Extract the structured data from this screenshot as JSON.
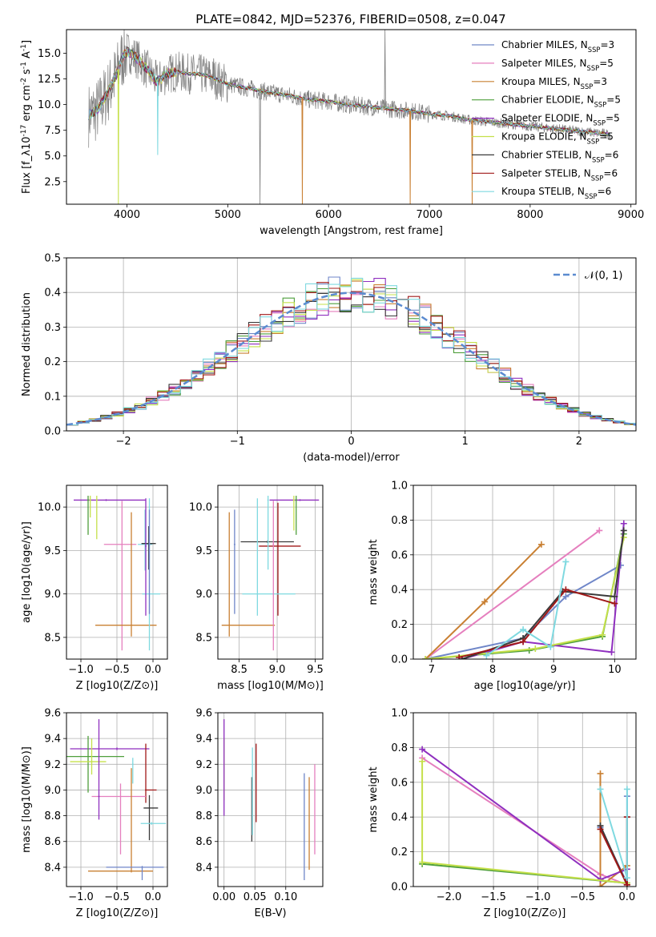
{
  "figure": {
    "title": "PLATE=0842, MJD=52376, FIBERID=0508, z=0.047"
  },
  "series_styles": [
    {
      "name": "Chabrier MILES",
      "n_ssp": 3,
      "color": "#6f86c8"
    },
    {
      "name": "Salpeter MILES",
      "n_ssp": 5,
      "color": "#e57fbe"
    },
    {
      "name": "Kroupa MILES",
      "n_ssp": 3,
      "color": "#c98033"
    },
    {
      "name": "Chabrier ELODIE",
      "n_ssp": 5,
      "color": "#4f9f3c"
    },
    {
      "name": "Salpeter ELODIE",
      "n_ssp": 5,
      "color": "#8f2fbf"
    },
    {
      "name": "Kroupa ELODIE",
      "n_ssp": 5,
      "color": "#c5e04a"
    },
    {
      "name": "Chabrier STELIB",
      "n_ssp": 6,
      "color": "#3a3a3a"
    },
    {
      "name": "Salpeter STELIB",
      "n_ssp": 6,
      "color": "#a01818"
    },
    {
      "name": "Kroupa STELIB",
      "n_ssp": 6,
      "color": "#7fd9e0"
    }
  ],
  "chart_data": [
    {
      "id": "spectrum",
      "type": "line",
      "xlabel": "wavelength [Angstrom, rest frame]",
      "ylabel": "Flux [f_λ10^-17 erg cm^-2 s^-1 A^-1]",
      "xlim": [
        3400,
        9050
      ],
      "ylim": [
        0.3,
        17.3
      ],
      "xticks": [
        4000,
        5000,
        6000,
        7000,
        8000,
        9000
      ],
      "yticks": [
        2.5,
        5.0,
        7.5,
        10.0,
        12.5,
        15.0
      ],
      "grid": false,
      "legend": "top-right",
      "data_color": "#808080",
      "continuum": {
        "x": [
          3620,
          3700,
          3800,
          3900,
          3950,
          4000,
          4100,
          4200,
          4300,
          4400,
          4500,
          4600,
          4700,
          4800,
          4900,
          5000,
          5200,
          5400,
          5600,
          5800,
          6000,
          6200,
          6400,
          6600,
          6800,
          7000,
          7200,
          7400,
          7600,
          7800,
          8000,
          8200,
          8400,
          8600,
          8800
        ],
        "y": [
          9.0,
          9.4,
          11.0,
          13.0,
          14.5,
          15.2,
          14.5,
          13.4,
          12.2,
          13.0,
          13.2,
          13.0,
          13.0,
          12.8,
          12.4,
          12.0,
          11.6,
          11.2,
          10.9,
          10.5,
          10.3,
          10.0,
          9.8,
          9.6,
          9.4,
          9.1,
          8.9,
          8.5,
          8.3,
          8.1,
          7.9,
          7.7,
          7.5,
          7.3,
          7.1
        ]
      },
      "dips": [
        {
          "x": 3915,
          "y": 0.3
        },
        {
          "x": 4305,
          "y": 5.1
        },
        {
          "x": 5740,
          "y": 0.3
        },
        {
          "x": 6810,
          "y": 0.3
        },
        {
          "x": 7425,
          "y": 0.3
        }
      ],
      "spikes": [
        {
          "x": 5320,
          "y": 0.3
        },
        {
          "x": 6560,
          "y": 17.3
        },
        {
          "x": 4860,
          "y": 14.5
        }
      ]
    },
    {
      "id": "residuals",
      "type": "line",
      "xlabel": "(data-model)/error",
      "ylabel": "Normed distribution",
      "xlim": [
        -2.5,
        2.5
      ],
      "ylim": [
        0.0,
        0.5
      ],
      "xticks": [
        -2,
        -1,
        0,
        1,
        2
      ],
      "yticks": [
        0.0,
        0.1,
        0.2,
        0.3,
        0.4,
        0.5
      ],
      "grid": true,
      "legend": "top-right",
      "gaussian": {
        "label": "𝒩(0, 1)",
        "mu": 0,
        "sigma": 1,
        "color": "#5b8bd0"
      },
      "bin_width": 0.1
    },
    {
      "id": "age-vs-Z",
      "type": "scatter",
      "xlabel": "Z [log10(Z/Z⊙)]",
      "ylabel": "age  [log10(age/yr)]",
      "xlim": [
        -1.2,
        0.2
      ],
      "ylim": [
        8.25,
        10.25
      ],
      "xticks": [
        -1.0,
        -0.5,
        0.0
      ],
      "yticks": [
        8.5,
        9.0,
        9.5,
        10.0
      ],
      "grid": true,
      "points": [
        {
          "s": 8,
          "x": -0.11,
          "y": 9.57,
          "ex": [
            0.1,
            0.1
          ],
          "ey": [
            0.3,
            0.4
          ]
        },
        {
          "s": 6,
          "x": -0.06,
          "y": 9.58,
          "ex": [
            0.1,
            0.1
          ],
          "ey": [
            0.3,
            0.2
          ]
        },
        {
          "s": 1,
          "x": -0.43,
          "y": 9.57,
          "ex": [
            0.25,
            0.2
          ],
          "ey": [
            1.22,
            0.5
          ]
        },
        {
          "s": 2,
          "x": -0.3,
          "y": 8.64,
          "ex": [
            0.5,
            0.35
          ],
          "ey": [
            0.13,
            1.3
          ]
        },
        {
          "s": 8,
          "x": -0.05,
          "y": 9.0,
          "ex": [
            0.1,
            0.15
          ],
          "ey": [
            0.65,
            1.1
          ]
        },
        {
          "s": 4,
          "x": -0.1,
          "y": 9.55,
          "ex": [
            0.01,
            0.01
          ],
          "ey": [
            0.8,
            0.55
          ]
        },
        {
          "s": 0,
          "x": -0.05,
          "y": 9.57,
          "ex": [
            0.01,
            0.01
          ],
          "ey": [
            0.8,
            0.4
          ]
        },
        {
          "s": 4,
          "x": -0.65,
          "y": 10.08,
          "ex": [
            0.45,
            0.55
          ],
          "ey": [
            0.01,
            0.01
          ]
        },
        {
          "s": 5,
          "x": -0.87,
          "y": 10.08,
          "ex": [
            0.01,
            0.01
          ],
          "ey": [
            0.2,
            0.05
          ]
        },
        {
          "s": 5,
          "x": -0.78,
          "y": 10.08,
          "ex": [
            0.01,
            0.01
          ],
          "ey": [
            0.45,
            0.05
          ]
        },
        {
          "s": 3,
          "x": -0.9,
          "y": 10.08,
          "ex": [
            0.01,
            0.01
          ],
          "ey": [
            0.4,
            0.05
          ]
        }
      ]
    },
    {
      "id": "age-vs-mass",
      "type": "scatter",
      "xlabel": "mass [log10(M/M⊙)]",
      "ylabel": "",
      "xlim": [
        8.22,
        9.6
      ],
      "ylim": [
        8.25,
        10.25
      ],
      "xticks": [
        8.5,
        9.0,
        9.5
      ],
      "yticks": [
        8.5,
        9.0,
        9.5,
        10.0
      ],
      "grid": true,
      "points": [
        {
          "s": 2,
          "x": 8.37,
          "y": 8.64,
          "ex": [
            0.1,
            0.6
          ],
          "ey": [
            0.13,
            1.3
          ]
        },
        {
          "s": 6,
          "x": 8.87,
          "y": 9.6,
          "ex": [
            0.35,
            0.35
          ],
          "ey": [
            0.01,
            0.01
          ]
        },
        {
          "s": 7,
          "x": 9.01,
          "y": 9.55,
          "ex": [
            0.25,
            0.3
          ],
          "ey": [
            0.8,
            0.5
          ]
        },
        {
          "s": 8,
          "x": 8.74,
          "y": 9.0,
          "ex": [
            0.2,
            0.5
          ],
          "ey": [
            0.25,
            1.1
          ]
        },
        {
          "s": 0,
          "x": 8.44,
          "y": 9.57,
          "ex": [
            0.01,
            0.01
          ],
          "ey": [
            0.8,
            0.4
          ]
        },
        {
          "s": 1,
          "x": 8.95,
          "y": 9.57,
          "ex": [
            0.01,
            0.01
          ],
          "ey": [
            1.22,
            0.5
          ]
        },
        {
          "s": 4,
          "x": 9.3,
          "y": 10.08,
          "ex": [
            0.4,
            0.25
          ],
          "ey": [
            0.01,
            0.01
          ]
        },
        {
          "s": 3,
          "x": 9.25,
          "y": 10.08,
          "ex": [
            0.01,
            0.01
          ],
          "ey": [
            0.4,
            0.05
          ]
        },
        {
          "s": 5,
          "x": 9.22,
          "y": 10.08,
          "ex": [
            0.01,
            0.01
          ],
          "ey": [
            0.35,
            0.05
          ]
        },
        {
          "s": 8,
          "x": 8.88,
          "y": 10.08,
          "ex": [
            0.01,
            0.01
          ],
          "ey": [
            0.8,
            0.05
          ]
        }
      ]
    },
    {
      "id": "mass-weight-vs-age",
      "type": "line",
      "xlabel": "age  [log10(age/yr)]",
      "ylabel": "mass weight",
      "xlim": [
        6.7,
        10.35
      ],
      "ylim": [
        0.0,
        1.0
      ],
      "xticks": [
        7,
        8,
        9,
        10
      ],
      "yticks": [
        0.0,
        0.2,
        0.4,
        0.6,
        0.8,
        1.0
      ],
      "grid": true,
      "series": [
        {
          "s": 0,
          "x": [
            6.9,
            8.5,
            9.2,
            10.1
          ],
          "y": [
            0.0,
            0.12,
            0.36,
            0.54
          ]
        },
        {
          "s": 1,
          "x": [
            6.9,
            9.75
          ],
          "y": [
            0.0,
            0.74
          ]
        },
        {
          "s": 2,
          "x": [
            6.9,
            7.87,
            8.8
          ],
          "y": [
            0.0,
            0.33,
            0.66
          ]
        },
        {
          "s": 3,
          "x": [
            6.9,
            8.6,
            9.8,
            10.15
          ],
          "y": [
            0.0,
            0.05,
            0.13,
            0.72
          ]
        },
        {
          "s": 4,
          "x": [
            7.5,
            8.5,
            9.95,
            10.15
          ],
          "y": [
            0.0,
            0.1,
            0.04,
            0.78
          ]
        },
        {
          "s": 5,
          "x": [
            6.9,
            8.7,
            9.8,
            10.15
          ],
          "y": [
            0.0,
            0.06,
            0.14,
            0.7
          ]
        },
        {
          "s": 6,
          "x": [
            7.5,
            8.5,
            9.15,
            10.0,
            10.15
          ],
          "y": [
            0.0,
            0.12,
            0.39,
            0.36,
            0.74
          ]
        },
        {
          "s": 7,
          "x": [
            7.45,
            8.5,
            9.2,
            10.0
          ],
          "y": [
            0.01,
            0.1,
            0.4,
            0.32
          ]
        },
        {
          "s": 8,
          "x": [
            7.9,
            8.5,
            8.95,
            9.2
          ],
          "y": [
            0.02,
            0.17,
            0.07,
            0.56
          ]
        }
      ]
    },
    {
      "id": "mass-vs-Z",
      "type": "scatter",
      "xlabel": "Z [log10(Z/Z⊙)]",
      "ylabel": "mass [log10(M/M⊙)]",
      "xlim": [
        -1.2,
        0.2
      ],
      "ylim": [
        8.25,
        9.6
      ],
      "xticks": [
        -1.0,
        -0.5,
        0.0
      ],
      "yticks": [
        8.4,
        8.6,
        8.8,
        9.0,
        9.2,
        9.4,
        9.6
      ],
      "grid": true,
      "points": [
        {
          "s": 4,
          "x": -0.5,
          "y": 9.32,
          "ex": [
            0.65,
            0.45
          ],
          "ey": [
            0.01,
            0.01
          ]
        },
        {
          "s": 3,
          "x": -0.9,
          "y": 9.26,
          "ex": [
            0.3,
            0.5
          ],
          "ey": [
            0.28,
            0.16
          ]
        },
        {
          "s": 5,
          "x": -0.85,
          "y": 9.22,
          "ex": [
            0.3,
            0.2
          ],
          "ey": [
            0.1,
            0.18
          ]
        },
        {
          "s": 8,
          "x": -0.28,
          "y": 9.2,
          "ex": [
            0.01,
            0.01
          ],
          "ey": [
            0.15,
            0.05
          ]
        },
        {
          "s": 7,
          "x": -0.1,
          "y": 9.0,
          "ex": [
            0.01,
            0.15
          ],
          "ey": [
            0.1,
            0.36
          ]
        },
        {
          "s": 1,
          "x": -0.45,
          "y": 8.95,
          "ex": [
            0.4,
            0.35
          ],
          "ey": [
            0.45,
            0.1
          ]
        },
        {
          "s": 4,
          "x": -0.75,
          "y": 8.95,
          "ex": [
            0.01,
            0.01
          ],
          "ey": [
            0.18,
            0.6
          ]
        },
        {
          "s": 6,
          "x": -0.05,
          "y": 8.86,
          "ex": [
            0.08,
            0.12
          ],
          "ey": [
            0.25,
            0.1
          ]
        },
        {
          "s": 8,
          "x": -0.02,
          "y": 8.74,
          "ex": [
            0.15,
            0.2
          ],
          "ey": [
            0.01,
            0.01
          ]
        },
        {
          "s": 2,
          "x": -0.3,
          "y": 8.37,
          "ex": [
            0.6,
            0.3
          ],
          "ey": [
            0.01,
            0.8
          ]
        },
        {
          "s": 0,
          "x": -0.15,
          "y": 8.4,
          "ex": [
            0.5,
            0.3
          ],
          "ey": [
            0.1,
            0.01
          ]
        }
      ]
    },
    {
      "id": "mass-vs-ebv",
      "type": "scatter",
      "xlabel": "E(B-V)",
      "ylabel": "",
      "xlim": [
        -0.01,
        0.16
      ],
      "ylim": [
        8.25,
        9.6
      ],
      "xticks": [
        0.0,
        0.05,
        0.1
      ],
      "yticks": [
        8.4,
        8.6,
        8.8,
        9.0,
        9.2,
        9.4,
        9.6
      ],
      "grid": true,
      "points": [
        {
          "s": 5,
          "x": 0.0,
          "y": 9.22,
          "ex": [
            0.0,
            0.0
          ],
          "ey": [
            0.3,
            0.18
          ]
        },
        {
          "s": 4,
          "x": 0.0,
          "y": 9.2,
          "ex": [
            0.0,
            0.0
          ],
          "ey": [
            0.4,
            0.35
          ]
        },
        {
          "s": 6,
          "x": 0.045,
          "y": 8.9,
          "ex": [
            0.0,
            0.0
          ],
          "ey": [
            0.3,
            0.2
          ]
        },
        {
          "s": 8,
          "x": 0.046,
          "y": 8.95,
          "ex": [
            0.0,
            0.0
          ],
          "ey": [
            0.3,
            0.38
          ]
        },
        {
          "s": 7,
          "x": 0.052,
          "y": 9.0,
          "ex": [
            0.0,
            0.0
          ],
          "ey": [
            0.25,
            0.36
          ]
        },
        {
          "s": 0,
          "x": 0.13,
          "y": 8.7,
          "ex": [
            0.0,
            0.0
          ],
          "ey": [
            0.4,
            0.43
          ]
        },
        {
          "s": 2,
          "x": 0.138,
          "y": 8.7,
          "ex": [
            0.0,
            0.0
          ],
          "ey": [
            0.32,
            0.4
          ]
        },
        {
          "s": 1,
          "x": 0.147,
          "y": 8.85,
          "ex": [
            0.0,
            0.0
          ],
          "ey": [
            0.35,
            0.35
          ]
        }
      ]
    },
    {
      "id": "mass-weight-vs-Z",
      "type": "line",
      "xlabel": "Z [log10(Z/Z⊙)]",
      "ylabel": "mass weight",
      "xlim": [
        -2.4,
        0.1
      ],
      "ylim": [
        0.0,
        1.0
      ],
      "xticks": [
        -2.0,
        -1.5,
        -1.0,
        -0.5,
        0.0
      ],
      "yticks": [
        0.0,
        0.2,
        0.4,
        0.6,
        0.8,
        1.0
      ],
      "grid": true,
      "series": [
        {
          "s": 0,
          "x": [
            -0.3,
            0.0,
            0.0
          ],
          "y": [
            0.34,
            0.02,
            0.52
          ]
        },
        {
          "s": 1,
          "x": [
            -2.3,
            -0.3,
            0.0
          ],
          "y": [
            0.74,
            0.07,
            0.01
          ]
        },
        {
          "s": 2,
          "x": [
            -0.3,
            -0.3,
            0.0
          ],
          "y": [
            0.65,
            0.0,
            0.12
          ]
        },
        {
          "s": 3,
          "x": [
            -2.3,
            0.0
          ],
          "y": [
            0.13,
            0.02
          ]
        },
        {
          "s": 4,
          "x": [
            -2.3,
            -0.3,
            0.0
          ],
          "y": [
            0.79,
            0.04,
            0.1
          ]
        },
        {
          "s": 5,
          "x": [
            -2.3,
            -2.3,
            0.0
          ],
          "y": [
            0.72,
            0.14,
            0.02
          ]
        },
        {
          "s": 6,
          "x": [
            -0.3,
            0.0,
            0.0
          ],
          "y": [
            0.35,
            0.01,
            0.4
          ]
        },
        {
          "s": 7,
          "x": [
            -0.3,
            0.0,
            0.0
          ],
          "y": [
            0.33,
            0.01,
            0.4
          ]
        },
        {
          "s": 8,
          "x": [
            -0.3,
            0.0,
            0.0
          ],
          "y": [
            0.56,
            0.05,
            0.56
          ]
        }
      ]
    }
  ]
}
